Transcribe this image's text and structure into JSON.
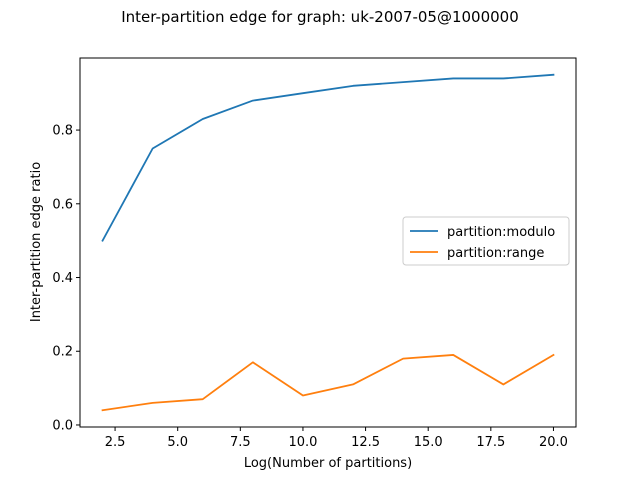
{
  "chart_data": {
    "type": "line",
    "title": "Inter-partition edge for graph: uk-2007-05@1000000",
    "xlabel": "Log(Number of partitions)",
    "ylabel": "Inter-partition edge ratio",
    "x": [
      2,
      4,
      6,
      8,
      10,
      12,
      14,
      16,
      18,
      20
    ],
    "xlim": [
      1.1,
      20.9
    ],
    "ylim": [
      -0.0055,
      0.9955
    ],
    "x_ticks": [
      2.5,
      5.0,
      7.5,
      10.0,
      12.5,
      15.0,
      17.5,
      20.0
    ],
    "x_tick_labels": [
      "2.5",
      "5.0",
      "7.5",
      "10.0",
      "12.5",
      "15.0",
      "17.5",
      "20.0"
    ],
    "y_ticks": [
      0.0,
      0.2,
      0.4,
      0.6,
      0.8
    ],
    "y_tick_labels": [
      "0.0",
      "0.2",
      "0.4",
      "0.6",
      "0.8"
    ],
    "grid": false,
    "legend_position": "center-right",
    "series": [
      {
        "name": "partition:modulo",
        "color": "#1f77b4",
        "values": [
          0.5,
          0.75,
          0.83,
          0.88,
          0.9,
          0.92,
          0.93,
          0.94,
          0.94,
          0.95
        ]
      },
      {
        "name": "partition:range",
        "color": "#ff7f0e",
        "values": [
          0.04,
          0.06,
          0.07,
          0.17,
          0.08,
          0.11,
          0.18,
          0.19,
          0.11,
          0.19
        ]
      }
    ]
  }
}
